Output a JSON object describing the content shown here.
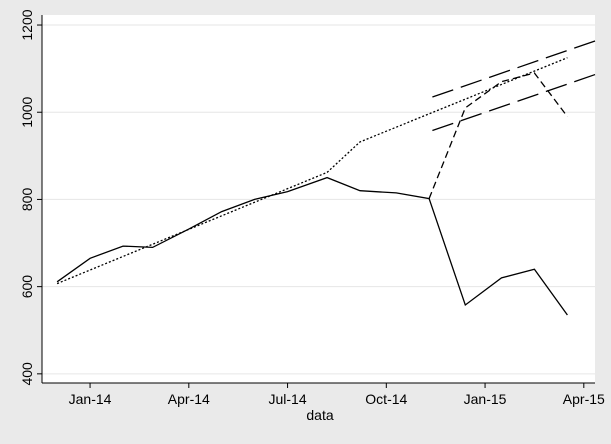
{
  "chart_data": {
    "type": "line",
    "x_label": "data",
    "xlim": [
      -1.46,
      15.34
    ],
    "ylim": [
      379,
      1223
    ],
    "xticks": [
      {
        "value": 0,
        "label": "Jan-14"
      },
      {
        "value": 3,
        "label": "Apr-14"
      },
      {
        "value": 6,
        "label": "Jul-14"
      },
      {
        "value": 9,
        "label": "Oct-14"
      },
      {
        "value": 12,
        "label": "Jan-15"
      },
      {
        "value": 15,
        "label": "Apr-15"
      }
    ],
    "yticks": [
      400,
      600,
      800,
      1000,
      1200
    ],
    "grid": true,
    "series": [
      {
        "color": "#000000",
        "dash": "solid",
        "x": [
          -1,
          0,
          1,
          1.9,
          3,
          4,
          5,
          6,
          7.2,
          8.2,
          9.3,
          10.3,
          11.4,
          12.5,
          13.5,
          14.5
        ],
        "values": [
          611,
          665,
          693,
          690,
          732,
          772,
          800,
          818,
          850,
          820,
          815,
          802,
          558,
          620,
          640,
          535
        ]
      },
      {
        "color": "#000000",
        "dash": "dashed",
        "x": [
          10.3,
          11.4,
          12.5,
          13.5,
          14.5
        ],
        "values": [
          802,
          1010,
          1070,
          1090,
          990
        ]
      },
      {
        "color": "#000000",
        "dash": "dotted",
        "x": [
          -1,
          7.2,
          8.2,
          14.5
        ],
        "values": [
          607,
          862,
          932,
          1125
        ]
      },
      {
        "color": "#000000",
        "dash": "longdash",
        "x": [
          10.4,
          15.4
        ],
        "values": [
          1035,
          1165
        ]
      },
      {
        "color": "#000000",
        "dash": "longdash",
        "x": [
          10.4,
          15.4
        ],
        "values": [
          958,
          1088
        ]
      }
    ]
  }
}
